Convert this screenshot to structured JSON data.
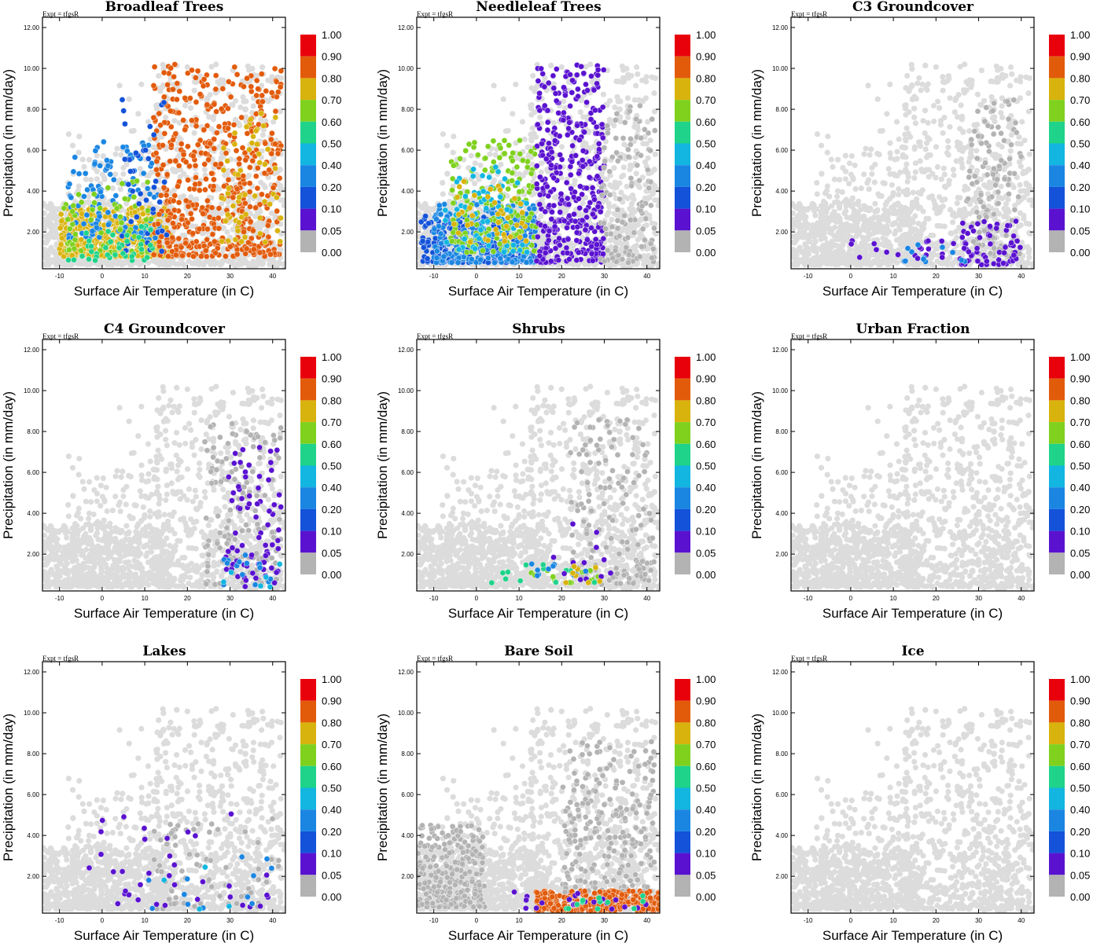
{
  "figure": {
    "expt_label": "Expt = tfgsR",
    "xlabel": "Surface Air Temperature (in C)",
    "ylabel": "Precipitation (in mm/day)",
    "xlim": [
      -14,
      43
    ],
    "ylim": [
      0.2,
      12.5
    ],
    "xticks": [
      "-10",
      "0",
      "10",
      "20",
      "30",
      "40"
    ],
    "xtick_values": [
      -10,
      0,
      10,
      20,
      30,
      40
    ],
    "yticks": [
      "2.00",
      "4.00",
      "6.00",
      "8.00",
      "10.00",
      "12.00"
    ],
    "ytick_values": [
      2,
      4,
      6,
      8,
      10,
      12
    ],
    "colorbar": {
      "levels": [
        "1.00",
        "0.90",
        "0.80",
        "0.70",
        "0.60",
        "0.50",
        "0.40",
        "0.20",
        "0.10",
        "0.05",
        "0.00"
      ],
      "colors": [
        "#e8000b",
        "#e25b0b",
        "#d9b30d",
        "#7fd11e",
        "#1fd38a",
        "#12b6e0",
        "#1a86e2",
        "#1352d9",
        "#5a12d0",
        "#b3b3b3"
      ]
    },
    "colors": {
      "background_point": "#dcdcdc",
      "zero_point": "#a8a8a8",
      "frame": "#000000"
    }
  },
  "chart_data": [
    {
      "type": "scatter",
      "title": "Broadleaf Trees",
      "clusters": [
        {
          "x": [
            -10,
            16
          ],
          "y": [
            0.8,
            3.2
          ],
          "level": "0.80",
          "n": 430
        },
        {
          "x": [
            -8,
            14
          ],
          "y": [
            1.6,
            6.5
          ],
          "level": "0.40",
          "n": 120
        },
        {
          "x": [
            -9,
            12
          ],
          "y": [
            1.0,
            4.5
          ],
          "level": "0.70",
          "n": 60
        },
        {
          "x": [
            12,
            42
          ],
          "y": [
            0.8,
            10.2
          ],
          "level": "0.90",
          "n": 520
        },
        {
          "x": [
            28,
            42
          ],
          "y": [
            1.5,
            7.8
          ],
          "level": "0.80",
          "n": 60
        },
        {
          "x": [
            4,
            16
          ],
          "y": [
            1.0,
            8.5
          ],
          "level": "0.20",
          "n": 40
        },
        {
          "x": [
            -8,
            12
          ],
          "y": [
            0.6,
            2.5
          ],
          "level": "0.60",
          "n": 40
        }
      ]
    },
    {
      "type": "scatter",
      "title": "Needleleaf Trees",
      "clusters": [
        {
          "x": [
            -13,
            14
          ],
          "y": [
            0.5,
            2.8
          ],
          "level": "0.20",
          "n": 260
        },
        {
          "x": [
            -10,
            14
          ],
          "y": [
            0.5,
            3.5
          ],
          "level": "0.40",
          "n": 200
        },
        {
          "x": [
            -6,
            14
          ],
          "y": [
            1.0,
            6.5
          ],
          "level": "0.70",
          "n": 170
        },
        {
          "x": [
            -8,
            12
          ],
          "y": [
            1.0,
            5.5
          ],
          "level": "0.50",
          "n": 70
        },
        {
          "x": [
            -6,
            12
          ],
          "y": [
            1.5,
            4.5
          ],
          "level": "0.80",
          "n": 40
        },
        {
          "x": [
            14,
            30
          ],
          "y": [
            0.5,
            10.2
          ],
          "level": "0.05",
          "n": 380
        },
        {
          "x": [
            29,
            42
          ],
          "y": [
            0.5,
            8.5
          ],
          "level": "0.00",
          "n": 120
        }
      ]
    },
    {
      "type": "scatter",
      "title": "C3 Groundcover",
      "clusters": [
        {
          "x": [
            27,
            40
          ],
          "y": [
            0.8,
            8.6
          ],
          "level": "0.00",
          "n": 130
        },
        {
          "x": [
            26,
            40
          ],
          "y": [
            0.4,
            2.6
          ],
          "level": "0.05",
          "n": 60
        },
        {
          "x": [
            0,
            30
          ],
          "y": [
            0.6,
            1.6
          ],
          "level": "0.10",
          "n": 25
        },
        {
          "x": [
            10,
            30
          ],
          "y": [
            0.5,
            1.5
          ],
          "level": "0.40",
          "n": 12
        }
      ]
    },
    {
      "type": "scatter",
      "title": "C4 Groundcover",
      "clusters": [
        {
          "x": [
            24,
            42
          ],
          "y": [
            0.5,
            8.6
          ],
          "level": "0.00",
          "n": 140
        },
        {
          "x": [
            29,
            42
          ],
          "y": [
            0.8,
            7.8
          ],
          "level": "0.05",
          "n": 45
        },
        {
          "x": [
            28,
            42
          ],
          "y": [
            0.4,
            6.5
          ],
          "level": "0.10",
          "n": 30
        },
        {
          "x": [
            28,
            40
          ],
          "y": [
            0.4,
            2.0
          ],
          "level": "0.40",
          "n": 14
        },
        {
          "x": [
            28,
            42
          ],
          "y": [
            0.4,
            2.0
          ],
          "level": "0.50",
          "n": 6
        }
      ]
    },
    {
      "type": "scatter",
      "title": "Shrubs",
      "clusters": [
        {
          "x": [
            22,
            42
          ],
          "y": [
            0.5,
            8.6
          ],
          "level": "0.00",
          "n": 140
        },
        {
          "x": [
            10,
            30
          ],
          "y": [
            0.6,
            1.6
          ],
          "level": "0.70",
          "n": 14
        },
        {
          "x": [
            0,
            30
          ],
          "y": [
            0.6,
            1.5
          ],
          "level": "0.60",
          "n": 12
        },
        {
          "x": [
            18,
            35
          ],
          "y": [
            0.6,
            3.6
          ],
          "level": "0.05",
          "n": 12
        },
        {
          "x": [
            12,
            30
          ],
          "y": [
            0.6,
            1.6
          ],
          "level": "0.40",
          "n": 10
        },
        {
          "x": [
            20,
            30
          ],
          "y": [
            0.6,
            1.6
          ],
          "level": "0.80",
          "n": 8
        }
      ]
    },
    {
      "type": "scatter",
      "title": "Urban Fraction",
      "clusters": []
    },
    {
      "type": "scatter",
      "title": "Lakes",
      "clusters": [
        {
          "x": [
            12,
            42
          ],
          "y": [
            0.4,
            5.0
          ],
          "level": "0.00",
          "n": 70
        },
        {
          "x": [
            -6,
            40
          ],
          "y": [
            0.5,
            5.2
          ],
          "level": "0.05",
          "n": 20
        },
        {
          "x": [
            -4,
            36
          ],
          "y": [
            0.5,
            5.0
          ],
          "level": "0.10",
          "n": 16
        },
        {
          "x": [
            10,
            40
          ],
          "y": [
            0.4,
            3.5
          ],
          "level": "0.40",
          "n": 12
        },
        {
          "x": [
            14,
            40
          ],
          "y": [
            0.4,
            3.5
          ],
          "level": "0.50",
          "n": 4
        }
      ]
    },
    {
      "type": "scatter",
      "title": "Bare Soil",
      "clusters": [
        {
          "x": [
            -14,
            2
          ],
          "y": [
            0.5,
            4.5
          ],
          "level": "0.00",
          "n": 260
        },
        {
          "x": [
            20,
            42
          ],
          "y": [
            0.8,
            8.6
          ],
          "level": "0.00",
          "n": 230
        },
        {
          "x": [
            14,
            43
          ],
          "y": [
            0.3,
            1.3
          ],
          "level": "0.90",
          "n": 300
        },
        {
          "x": [
            5,
            42
          ],
          "y": [
            0.4,
            1.3
          ],
          "level": "0.05",
          "n": 20
        },
        {
          "x": [
            20,
            40
          ],
          "y": [
            0.4,
            1.2
          ],
          "level": "0.60",
          "n": 12
        }
      ]
    },
    {
      "type": "scatter",
      "title": "Ice",
      "clusters": []
    }
  ]
}
